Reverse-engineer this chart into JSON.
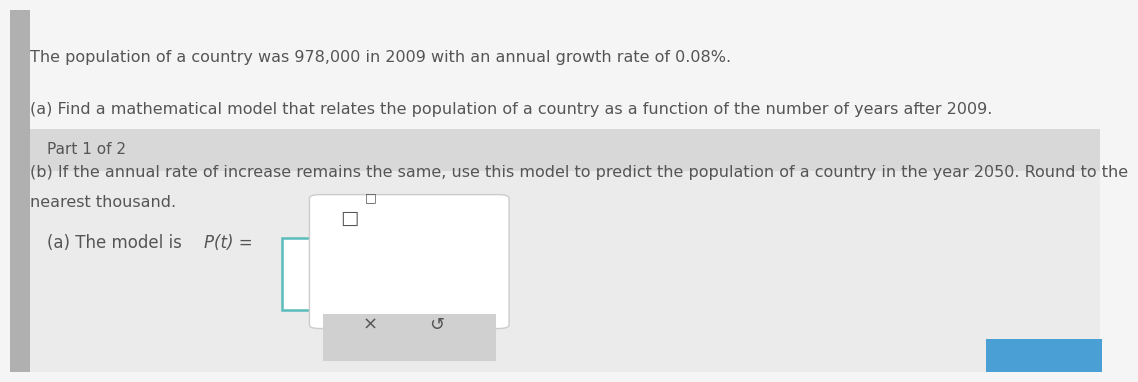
{
  "bg_color": "#f0f0f0",
  "top_bg_color": "#f5f5f5",
  "part_header_color": "#d8d8d8",
  "answer_bg_color": "#ebebeb",
  "white_color": "#ffffff",
  "text_color": "#555555",
  "teal_color": "#5bbcbc",
  "popup_border_color": "#cccccc",
  "popup_bottom_color": "#d0d0d0",
  "blue_btn_color": "#4a9fd4",
  "line1": "The population of a country was 978,000 in 2009 with an annual growth rate of 0.08%.",
  "line2": "(a) Find a mathematical model that relates the population of a country as a function of the number of years after 2009.",
  "line3a": "(b) If the annual rate of increase remains the same, use this model to predict the population of a country in the year 2050. Round to the",
  "line3b": "nearest thousand.",
  "part_label": "Part 1 of 2",
  "answer_prefix": "(a) The model is ",
  "pt_text": "P(t) =",
  "box_symbol": "□",
  "superscript_box": "□",
  "x_symbol": "×",
  "undo_symbol": "↺",
  "main_font_size": 11.5,
  "part_font_size": 11,
  "answer_font_size": 12
}
